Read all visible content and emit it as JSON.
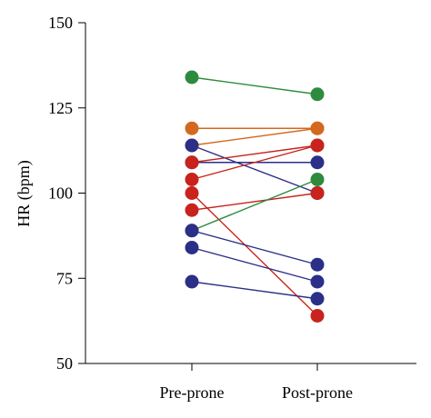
{
  "chart_data": {
    "type": "scatter",
    "title": "",
    "xlabel": "",
    "ylabel": "HR (bpm)",
    "ylim": [
      50,
      150
    ],
    "yticks": [
      50,
      75,
      100,
      125,
      150
    ],
    "categories": [
      "Pre-prone",
      "Post-prone"
    ],
    "grid": false,
    "legend": "none",
    "colors": {
      "green": "#2e8b3e",
      "orange": "#d2691e",
      "red": "#c8231c",
      "navy": "#2b2f87"
    },
    "series": [
      {
        "color": "green",
        "values": [
          134,
          129
        ]
      },
      {
        "color": "orange",
        "values": [
          119,
          119
        ]
      },
      {
        "color": "orange",
        "values": [
          114,
          119
        ]
      },
      {
        "color": "navy",
        "values": [
          114,
          100
        ]
      },
      {
        "color": "navy",
        "values": [
          109,
          109
        ]
      },
      {
        "color": "red",
        "values": [
          109,
          114
        ]
      },
      {
        "color": "red",
        "values": [
          104,
          114
        ]
      },
      {
        "color": "red",
        "values": [
          100,
          64
        ]
      },
      {
        "color": "red",
        "values": [
          95,
          100
        ]
      },
      {
        "color": "green",
        "values": [
          89,
          104
        ]
      },
      {
        "color": "navy",
        "values": [
          89,
          79
        ]
      },
      {
        "color": "navy",
        "values": [
          84,
          74
        ]
      },
      {
        "color": "navy",
        "values": [
          74,
          69
        ]
      }
    ]
  }
}
